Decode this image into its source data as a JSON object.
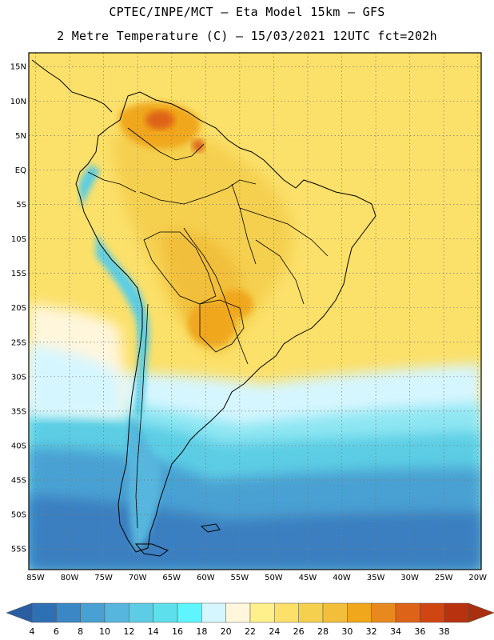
{
  "header": {
    "title_line1": "CPTEC/INPE/MCT –  Eta Model 15km – GFS",
    "title_line2": "2 Metre Temperature (C) – 15/03/2021 12UTC fct=202h"
  },
  "map": {
    "region": "South America",
    "lat_labels": [
      "15N",
      "10N",
      "5N",
      "EQ",
      "5S",
      "10S",
      "15S",
      "20S",
      "25S",
      "30S",
      "35S",
      "40S",
      "45S",
      "50S",
      "55S"
    ],
    "lat_values": [
      15,
      10,
      5,
      0,
      -5,
      -10,
      -15,
      -20,
      -25,
      -30,
      -35,
      -40,
      -45,
      -50,
      -55
    ],
    "lon_labels": [
      "85W",
      "80W",
      "75W",
      "70W",
      "65W",
      "60W",
      "55W",
      "50W",
      "45W",
      "40W",
      "35W",
      "30W",
      "25W",
      "20W"
    ],
    "lon_values": [
      -85,
      -80,
      -75,
      -70,
      -65,
      -60,
      -55,
      -50,
      -45,
      -40,
      -35,
      -30,
      -25,
      -20
    ],
    "lat_range": [
      -58,
      17
    ],
    "lon_range": [
      -86,
      -19.5
    ]
  },
  "colorbar": {
    "labels": [
      "4",
      "6",
      "8",
      "10",
      "12",
      "14",
      "16",
      "18",
      "20",
      "22",
      "24",
      "26",
      "28",
      "30",
      "32",
      "34",
      "36",
      "38"
    ],
    "colors": [
      "#2f6fb3",
      "#3b86c4",
      "#49a0d2",
      "#56b6dd",
      "#5ccde4",
      "#5de0ec",
      "#5ff5ff",
      "#d6f6ff",
      "#fff6dc",
      "#fff08c",
      "#fbe06a",
      "#f5d04f",
      "#f1bf3a",
      "#f0a71c",
      "#e8891e",
      "#dd6319",
      "#cf4613",
      "#b83210"
    ],
    "under_color": "#2a5ea0",
    "over_color": "#a83010"
  },
  "temperature_zones": [
    {
      "name": "atlantic-south-deep",
      "color": "#3b7fc0"
    },
    {
      "name": "atlantic-south-mid",
      "color": "#49a0d2"
    },
    {
      "name": "atlantic-south-cyan",
      "color": "#5ccde4"
    },
    {
      "name": "atlantic-south-light",
      "color": "#8ee6f2"
    },
    {
      "name": "ocean-pale",
      "color": "#d6f6ff"
    },
    {
      "name": "ocean-warm-yellow",
      "color": "#fbe06a"
    },
    {
      "name": "land-warm",
      "color": "#f5d04f"
    },
    {
      "name": "land-hot",
      "color": "#f0a71c"
    },
    {
      "name": "hotspot",
      "color": "#dd6319"
    },
    {
      "name": "andes-cold",
      "color": "#5ccde4"
    },
    {
      "name": "patagonia-cool",
      "color": "#56b6dd"
    }
  ]
}
